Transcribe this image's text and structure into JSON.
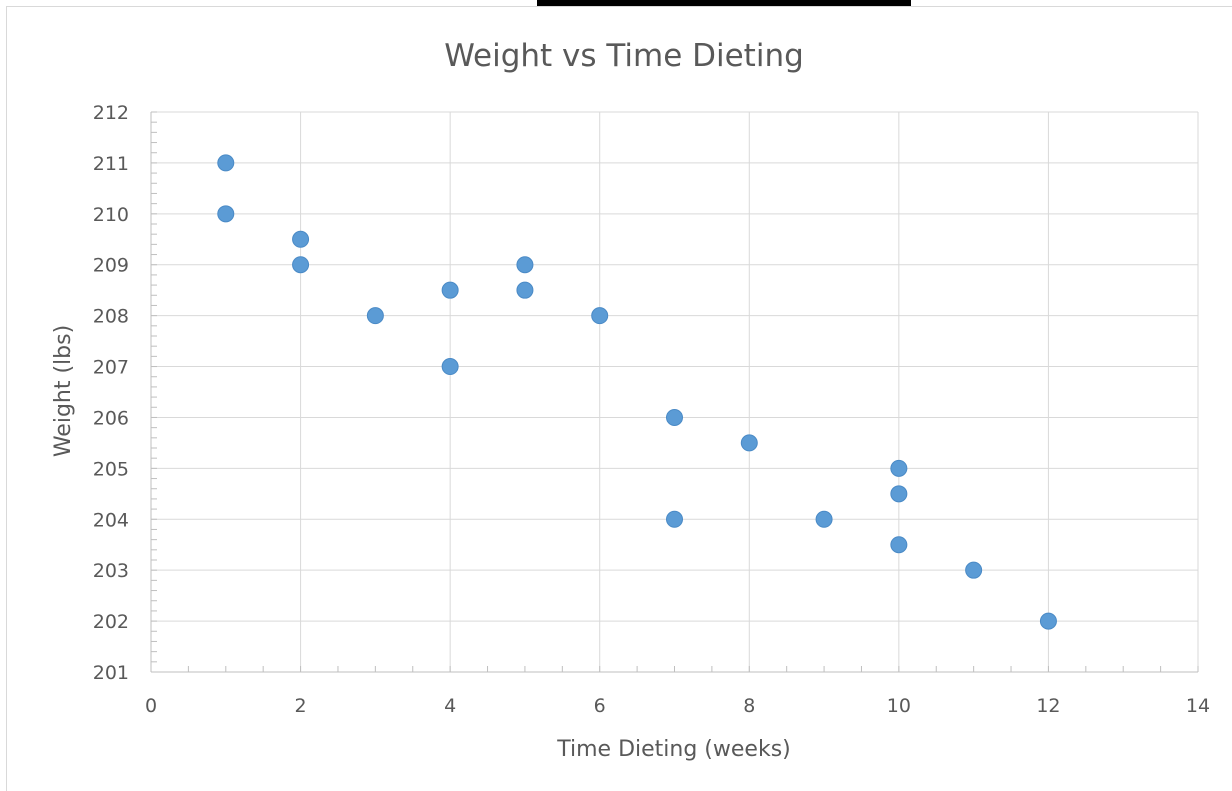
{
  "chart_data": {
    "type": "scatter",
    "title": "Weight vs Time Dieting",
    "xlabel": "Time Dieting (weeks)",
    "ylabel": "Weight (lbs)",
    "xlim": [
      0,
      14
    ],
    "ylim": [
      201,
      212
    ],
    "x_ticks": [
      "0",
      "2",
      "4",
      "6",
      "8",
      "10",
      "12",
      "14"
    ],
    "y_ticks": [
      "201",
      "202",
      "203",
      "204",
      "205",
      "206",
      "207",
      "208",
      "209",
      "210",
      "211",
      "212"
    ],
    "grid": true,
    "legend": "none",
    "color": "#5b9bd5",
    "points": [
      {
        "x": 1,
        "y": 211
      },
      {
        "x": 1,
        "y": 210
      },
      {
        "x": 2,
        "y": 209.5
      },
      {
        "x": 2,
        "y": 209
      },
      {
        "x": 3,
        "y": 208
      },
      {
        "x": 4,
        "y": 208.5
      },
      {
        "x": 4,
        "y": 207
      },
      {
        "x": 5,
        "y": 209
      },
      {
        "x": 5,
        "y": 208.5
      },
      {
        "x": 6,
        "y": 208
      },
      {
        "x": 7,
        "y": 206
      },
      {
        "x": 7,
        "y": 204
      },
      {
        "x": 8,
        "y": 205.5
      },
      {
        "x": 9,
        "y": 204
      },
      {
        "x": 10,
        "y": 205
      },
      {
        "x": 10,
        "y": 204.5
      },
      {
        "x": 10,
        "y": 203.5
      },
      {
        "x": 11,
        "y": 203
      },
      {
        "x": 12,
        "y": 202
      }
    ]
  }
}
